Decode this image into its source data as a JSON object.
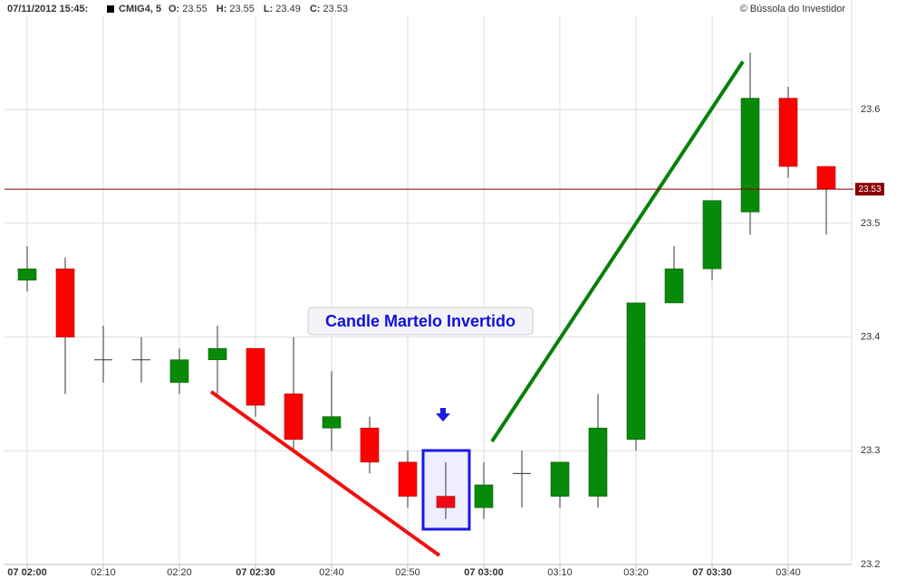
{
  "header": {
    "datetime": "07/11/2012 15:45:",
    "symbol": "CMIG4, 5",
    "fields": [
      {
        "label": "O:",
        "value": "23.55"
      },
      {
        "label": "H:",
        "value": "23.55"
      },
      {
        "label": "L:",
        "value": "23.49"
      },
      {
        "label": "C:",
        "value": "23.53"
      }
    ],
    "copyright": "© Bússola do Investidor"
  },
  "chart_data": {
    "type": "candlestick",
    "annotation": "Candle Martelo Invertido",
    "categories": [
      "07 02:00",
      null,
      "02:10",
      null,
      "02:20",
      null,
      "07 02:30",
      null,
      "02:40",
      null,
      "02:50",
      null,
      "07 03:00",
      null,
      "03:10",
      null,
      "03:20",
      null,
      "07 03:30",
      null,
      "03:40",
      null
    ],
    "open": [
      23.45,
      23.46,
      23.38,
      23.38,
      23.36,
      23.38,
      23.39,
      23.35,
      23.32,
      23.32,
      23.29,
      23.26,
      23.25,
      23.28,
      23.26,
      23.26,
      23.31,
      23.43,
      23.46,
      23.51,
      23.61,
      23.55
    ],
    "high": [
      23.48,
      23.47,
      23.41,
      23.4,
      23.39,
      23.41,
      23.39,
      23.4,
      23.37,
      23.33,
      23.3,
      23.29,
      23.29,
      23.3,
      23.29,
      23.35,
      23.43,
      23.48,
      23.52,
      23.65,
      23.62,
      23.55
    ],
    "low": [
      23.44,
      23.35,
      23.36,
      23.36,
      23.35,
      23.35,
      23.33,
      23.3,
      23.3,
      23.28,
      23.25,
      23.24,
      23.24,
      23.25,
      23.25,
      23.25,
      23.3,
      23.43,
      23.45,
      23.49,
      23.54,
      23.49
    ],
    "close": [
      23.46,
      23.4,
      23.38,
      23.38,
      23.38,
      23.39,
      23.34,
      23.31,
      23.33,
      23.29,
      23.26,
      23.25,
      23.27,
      23.28,
      23.29,
      23.32,
      23.43,
      23.46,
      23.52,
      23.61,
      23.55,
      23.53
    ],
    "up_color": "#078a07",
    "down_color": "#ff0000",
    "ylim": [
      23.2,
      23.68
    ],
    "yticks": [
      23.2,
      23.3,
      23.4,
      23.5,
      23.6
    ],
    "grid": true,
    "price_line": {
      "value": 23.53,
      "label": "23.53",
      "color": "#8b0000"
    }
  }
}
